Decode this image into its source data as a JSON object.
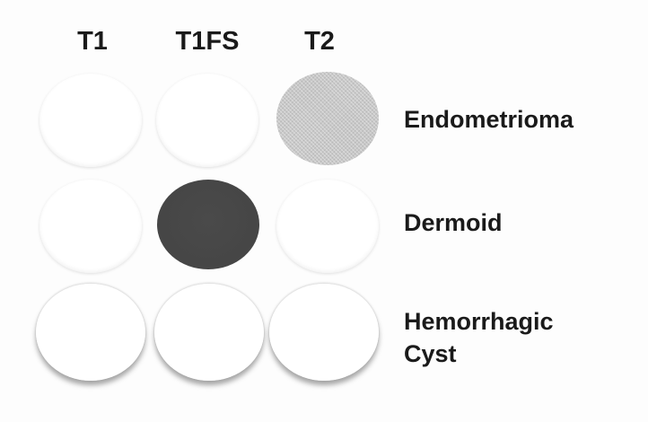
{
  "columns": [
    "T1",
    "T1FS",
    "T2"
  ],
  "rows": [
    {
      "label": "Endometrioma",
      "cells": [
        "light",
        "light",
        "gray"
      ]
    },
    {
      "label": "Dermoid",
      "cells": [
        "light",
        "dark",
        "light"
      ]
    },
    {
      "label_line1": "Hemorrhagic",
      "label_line2": "Cyst",
      "cells": [
        "rim",
        "rim",
        "rim"
      ]
    }
  ],
  "colors": {
    "gray": "#c9c9c9",
    "dark": "#454545",
    "light": "#ffffff",
    "text": "#1a1a1a"
  }
}
